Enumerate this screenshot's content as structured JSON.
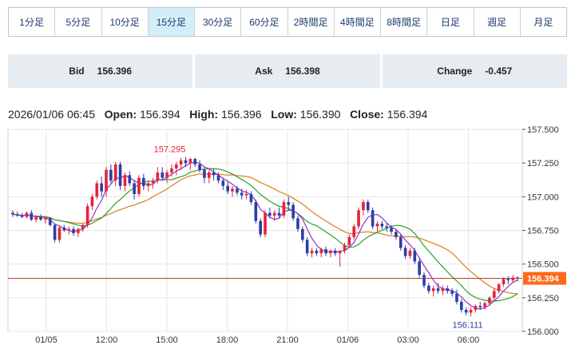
{
  "tabs": [
    {
      "label": "1分足",
      "active": false
    },
    {
      "label": "5分足",
      "active": false
    },
    {
      "label": "10分足",
      "active": false
    },
    {
      "label": "15分足",
      "active": true
    },
    {
      "label": "30分足",
      "active": false
    },
    {
      "label": "60分足",
      "active": false
    },
    {
      "label": "2時間足",
      "active": false
    },
    {
      "label": "4時間足",
      "active": false
    },
    {
      "label": "8時間足",
      "active": false
    },
    {
      "label": "日足",
      "active": false
    },
    {
      "label": "週足",
      "active": false
    },
    {
      "label": "月足",
      "active": false
    }
  ],
  "quote": {
    "bid_label": "Bid",
    "bid_value": "156.396",
    "ask_label": "Ask",
    "ask_value": "156.398",
    "change_label": "Change",
    "change_value": "-0.457"
  },
  "ohlc": {
    "datetime": "2026/01/06 06:45",
    "open_label": "Open:",
    "open": "156.394",
    "high_label": "High:",
    "high": "156.396",
    "low_label": "Low:",
    "low": "156.390",
    "close_label": "Close:",
    "close": "156.394"
  },
  "colors": {
    "up": "#e2243a",
    "down": "#2b3fa8",
    "ma_short": "#9a2fc9",
    "ma_mid": "#2ca02c",
    "ma_long": "#e07b1e",
    "price_line": "#c0392b",
    "price_tag": "#ff6a1a",
    "grid": "#e6e6e6",
    "axis": "#555555"
  },
  "chart_data": {
    "type": "candlestick",
    "ylim": [
      156.0,
      157.5
    ],
    "y_ticks": [
      "156.000",
      "156.250",
      "156.500",
      "156.750",
      "157.000",
      "157.250",
      "157.500"
    ],
    "x_ticks": [
      "01/05",
      "12:00",
      "15:00",
      "18:00",
      "21:00",
      "01/06",
      "03:00",
      "06:00"
    ],
    "current_price": "156.394",
    "annotations": {
      "high": "157.295",
      "low": "156.111"
    },
    "ohlc": [
      [
        156.88,
        156.9,
        156.85,
        156.87
      ],
      [
        156.87,
        156.89,
        156.85,
        156.86
      ],
      [
        156.86,
        156.88,
        156.84,
        156.85
      ],
      [
        156.85,
        156.89,
        156.84,
        156.88
      ],
      [
        156.88,
        156.9,
        156.82,
        156.83
      ],
      [
        156.83,
        156.86,
        156.81,
        156.85
      ],
      [
        156.85,
        156.87,
        156.82,
        156.83
      ],
      [
        156.83,
        156.85,
        156.8,
        156.84
      ],
      [
        156.84,
        156.85,
        156.78,
        156.79
      ],
      [
        156.79,
        156.8,
        156.66,
        156.68
      ],
      [
        156.68,
        156.78,
        156.66,
        156.77
      ],
      [
        156.77,
        156.79,
        156.74,
        156.75
      ],
      [
        156.75,
        156.78,
        156.72,
        156.76
      ],
      [
        156.76,
        156.78,
        156.71,
        156.73
      ],
      [
        156.73,
        156.77,
        156.7,
        156.76
      ],
      [
        156.76,
        156.8,
        156.74,
        156.79
      ],
      [
        156.79,
        156.95,
        156.77,
        156.93
      ],
      [
        156.93,
        157.02,
        156.9,
        157.0
      ],
      [
        157.0,
        157.12,
        156.98,
        157.1
      ],
      [
        157.1,
        157.15,
        157.0,
        157.04
      ],
      [
        157.04,
        157.22,
        157.0,
        157.2
      ],
      [
        157.2,
        157.24,
        157.1,
        157.12
      ],
      [
        157.12,
        157.26,
        157.08,
        157.24
      ],
      [
        157.24,
        157.26,
        157.05,
        157.08
      ],
      [
        157.08,
        157.18,
        157.04,
        157.16
      ],
      [
        157.16,
        157.19,
        157.08,
        157.1
      ],
      [
        157.1,
        157.12,
        156.98,
        157.02
      ],
      [
        157.02,
        157.16,
        157.0,
        157.14
      ],
      [
        157.14,
        157.17,
        157.05,
        157.08
      ],
      [
        157.08,
        157.12,
        157.04,
        157.1
      ],
      [
        157.1,
        157.14,
        157.06,
        157.12
      ],
      [
        157.12,
        157.22,
        157.1,
        157.18
      ],
      [
        157.18,
        157.22,
        157.12,
        157.14
      ],
      [
        157.14,
        157.2,
        157.1,
        157.18
      ],
      [
        157.18,
        157.24,
        157.15,
        157.21
      ],
      [
        157.21,
        157.26,
        157.16,
        157.24
      ],
      [
        157.24,
        157.29,
        157.2,
        157.27
      ],
      [
        157.27,
        157.295,
        157.22,
        157.25
      ],
      [
        157.25,
        157.29,
        157.2,
        157.28
      ],
      [
        157.28,
        157.29,
        157.22,
        157.24
      ],
      [
        157.24,
        157.27,
        157.18,
        157.2
      ],
      [
        157.2,
        157.22,
        157.1,
        157.14
      ],
      [
        157.14,
        157.2,
        157.1,
        157.18
      ],
      [
        157.18,
        157.21,
        157.12,
        157.16
      ],
      [
        157.16,
        157.18,
        157.1,
        157.12
      ],
      [
        157.12,
        157.14,
        157.05,
        157.08
      ],
      [
        157.08,
        157.11,
        157.02,
        157.04
      ],
      [
        157.04,
        157.08,
        157.0,
        157.06
      ],
      [
        157.06,
        157.08,
        157.01,
        157.03
      ],
      [
        157.03,
        157.06,
        156.98,
        157.01
      ],
      [
        157.01,
        157.05,
        156.98,
        157.02
      ],
      [
        157.02,
        157.04,
        156.94,
        156.96
      ],
      [
        156.96,
        156.98,
        156.8,
        156.82
      ],
      [
        156.82,
        156.84,
        156.7,
        156.72
      ],
      [
        156.72,
        156.9,
        156.7,
        156.88
      ],
      [
        156.88,
        156.92,
        156.84,
        156.86
      ],
      [
        156.86,
        156.9,
        156.82,
        156.88
      ],
      [
        156.88,
        156.92,
        156.84,
        156.86
      ],
      [
        156.86,
        156.98,
        156.84,
        156.96
      ],
      [
        156.96,
        157.0,
        156.9,
        156.94
      ],
      [
        156.94,
        156.96,
        156.82,
        156.84
      ],
      [
        156.84,
        156.86,
        156.74,
        156.76
      ],
      [
        156.76,
        156.78,
        156.66,
        156.68
      ],
      [
        156.68,
        156.7,
        156.56,
        156.58
      ],
      [
        156.58,
        156.62,
        156.55,
        156.6
      ],
      [
        156.6,
        156.62,
        156.56,
        156.58
      ],
      [
        156.58,
        156.62,
        156.55,
        156.61
      ],
      [
        156.61,
        156.63,
        156.56,
        156.58
      ],
      [
        156.58,
        156.61,
        156.55,
        156.6
      ],
      [
        156.6,
        156.62,
        156.56,
        156.58
      ],
      [
        156.58,
        156.6,
        156.48,
        156.6
      ],
      [
        156.6,
        156.66,
        156.58,
        156.64
      ],
      [
        156.64,
        156.72,
        156.62,
        156.7
      ],
      [
        156.7,
        156.8,
        156.68,
        156.78
      ],
      [
        156.78,
        156.92,
        156.76,
        156.9
      ],
      [
        156.9,
        156.98,
        156.86,
        156.96
      ],
      [
        156.96,
        156.98,
        156.88,
        156.9
      ],
      [
        156.9,
        156.92,
        156.76,
        156.78
      ],
      [
        156.78,
        156.82,
        156.74,
        156.8
      ],
      [
        156.8,
        156.82,
        156.76,
        156.78
      ],
      [
        156.78,
        156.8,
        156.74,
        156.77
      ],
      [
        156.77,
        156.79,
        156.72,
        156.74
      ],
      [
        156.74,
        156.76,
        156.68,
        156.7
      ],
      [
        156.7,
        156.72,
        156.6,
        156.62
      ],
      [
        156.62,
        156.64,
        156.54,
        156.56
      ],
      [
        156.56,
        156.62,
        156.54,
        156.6
      ],
      [
        156.6,
        156.62,
        156.5,
        156.52
      ],
      [
        156.52,
        156.54,
        156.4,
        156.42
      ],
      [
        156.42,
        156.44,
        156.32,
        156.34
      ],
      [
        156.34,
        156.36,
        156.28,
        156.3
      ],
      [
        156.3,
        156.34,
        156.26,
        156.32
      ],
      [
        156.32,
        156.36,
        156.28,
        156.3
      ],
      [
        156.3,
        156.34,
        156.27,
        156.32
      ],
      [
        156.32,
        156.34,
        156.28,
        156.3
      ],
      [
        156.3,
        156.32,
        156.26,
        156.28
      ],
      [
        156.28,
        156.31,
        156.2,
        156.22
      ],
      [
        156.22,
        156.24,
        156.14,
        156.16
      ],
      [
        156.16,
        156.18,
        156.12,
        156.14
      ],
      [
        156.14,
        156.18,
        156.111,
        156.16
      ],
      [
        156.16,
        156.2,
        156.14,
        156.19
      ],
      [
        156.19,
        156.22,
        156.16,
        156.18
      ],
      [
        156.18,
        156.22,
        156.16,
        156.21
      ],
      [
        156.21,
        156.26,
        156.19,
        156.25
      ],
      [
        156.25,
        156.32,
        156.23,
        156.3
      ],
      [
        156.3,
        156.36,
        156.28,
        156.35
      ],
      [
        156.35,
        156.4,
        156.33,
        156.39
      ],
      [
        156.39,
        156.41,
        156.35,
        156.38
      ],
      [
        156.38,
        156.42,
        156.36,
        156.4
      ],
      [
        156.4,
        156.41,
        156.37,
        156.394
      ]
    ]
  }
}
